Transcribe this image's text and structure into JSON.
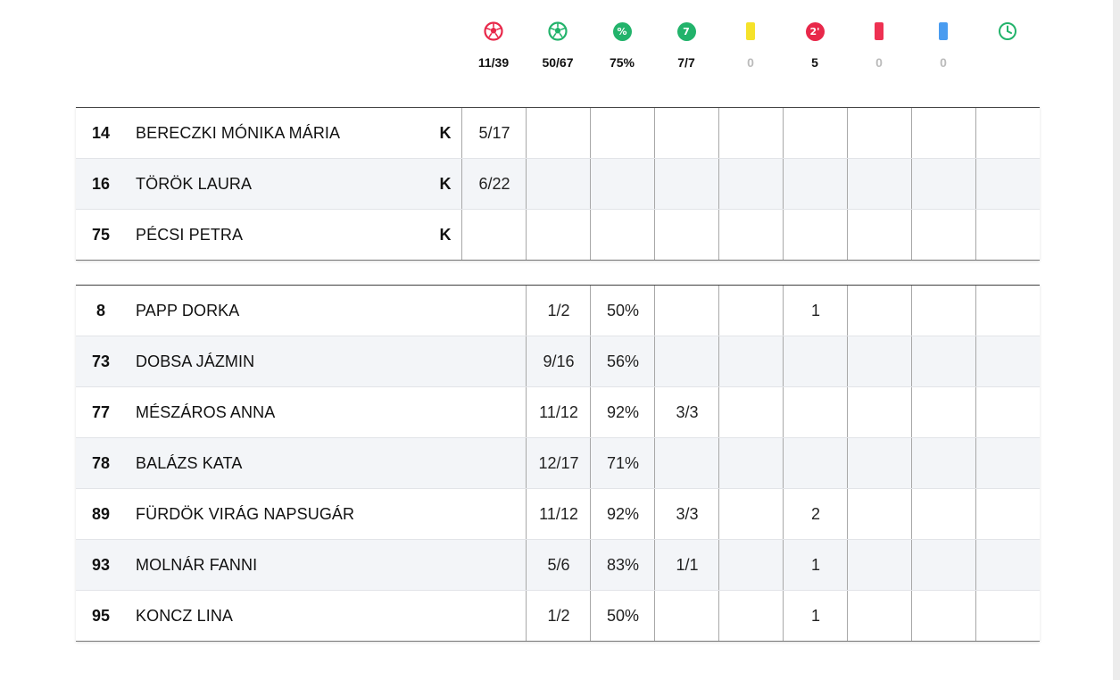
{
  "summary": [
    {
      "icon": "handball-icon",
      "value": "11/39",
      "muted": false,
      "color": "#e8284a",
      "type": "ball-outline"
    },
    {
      "icon": "ball-icon",
      "value": "50/67",
      "muted": false,
      "color": "#22b36b",
      "type": "ball-outline"
    },
    {
      "icon": "percent-icon",
      "value": "75%",
      "muted": false,
      "color": "#22b36b",
      "type": "circle",
      "glyph": "%"
    },
    {
      "icon": "seven-meter-icon",
      "value": "7/7",
      "muted": false,
      "color": "#22b36b",
      "type": "circle",
      "glyph": "7"
    },
    {
      "icon": "yellow-card-icon",
      "value": "0",
      "muted": true,
      "color": "#f5e22a",
      "type": "card"
    },
    {
      "icon": "two-minute-icon",
      "value": "5",
      "muted": false,
      "color": "#e8284a",
      "type": "circle",
      "glyph": "2'"
    },
    {
      "icon": "red-card-icon",
      "value": "0",
      "muted": true,
      "color": "#ee3152",
      "type": "card"
    },
    {
      "icon": "blue-card-icon",
      "value": "0",
      "muted": true,
      "color": "#4a9cf0",
      "type": "card"
    },
    {
      "icon": "clock-icon",
      "value": "",
      "muted": true,
      "color": "#22b36b",
      "type": "clock"
    }
  ],
  "goalkeepers": [
    {
      "number": "14",
      "name": "BERECZKI MÓNIKA MÁRIA",
      "badge": "K",
      "stats": [
        "5/17",
        "",
        "",
        "",
        "",
        "",
        "",
        "",
        ""
      ]
    },
    {
      "number": "16",
      "name": "TÖRÖK LAURA",
      "badge": "K",
      "stats": [
        "6/22",
        "",
        "",
        "",
        "",
        "",
        "",
        "",
        ""
      ]
    },
    {
      "number": "75",
      "name": "PÉCSI PETRA",
      "badge": "K",
      "stats": [
        "",
        "",
        "",
        "",
        "",
        "",
        "",
        "",
        ""
      ]
    }
  ],
  "field_players": [
    {
      "number": "8",
      "name": "PAPP DORKA",
      "badge": "",
      "stats": [
        "",
        "1/2",
        "50%",
        "",
        "",
        "1",
        "",
        "",
        ""
      ]
    },
    {
      "number": "73",
      "name": "DOBSA JÁZMIN",
      "badge": "",
      "stats": [
        "",
        "9/16",
        "56%",
        "",
        "",
        "",
        "",
        "",
        ""
      ]
    },
    {
      "number": "77",
      "name": "MÉSZÁROS ANNA",
      "badge": "",
      "stats": [
        "",
        "11/12",
        "92%",
        "3/3",
        "",
        "",
        "",
        "",
        ""
      ]
    },
    {
      "number": "78",
      "name": "BALÁZS KATA",
      "badge": "",
      "stats": [
        "",
        "12/17",
        "71%",
        "",
        "",
        "",
        "",
        "",
        ""
      ]
    },
    {
      "number": "89",
      "name": "FÜRDÖK VIRÁG NAPSUGÁR",
      "badge": "",
      "stats": [
        "",
        "11/12",
        "92%",
        "3/3",
        "",
        "2",
        "",
        "",
        ""
      ]
    },
    {
      "number": "93",
      "name": "MOLNÁR FANNI",
      "badge": "",
      "stats": [
        "",
        "5/6",
        "83%",
        "1/1",
        "",
        "1",
        "",
        "",
        ""
      ]
    },
    {
      "number": "95",
      "name": "KONCZ LINA",
      "badge": "",
      "stats": [
        "",
        "1/2",
        "50%",
        "",
        "",
        "1",
        "",
        "",
        ""
      ]
    }
  ]
}
